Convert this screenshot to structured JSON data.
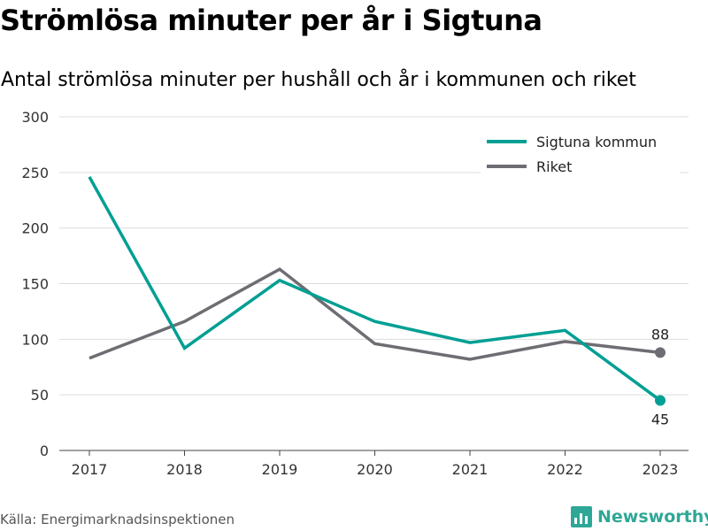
{
  "title": "Strömlösa minuter per år i Sigtuna",
  "subtitle": "Antal strömlösa minuter per hushåll och år i kommunen och riket",
  "source": "Källa: Energimarknadsinspektionen",
  "brand": {
    "name": "Newsworthy",
    "icon": "bar-chart-logo-icon",
    "color": "#2fa796"
  },
  "chart_data": {
    "type": "line",
    "title": "Strömlösa minuter per år i Sigtuna",
    "subtitle": "Antal strömlösa minuter per hushåll och år i kommunen och riket",
    "xlabel": "",
    "ylabel": "",
    "x": [
      "2017",
      "2018",
      "2019",
      "2020",
      "2021",
      "2022",
      "2023"
    ],
    "ylim": [
      0,
      300
    ],
    "yticks": [
      0,
      50,
      100,
      150,
      200,
      250,
      300
    ],
    "grid": true,
    "legend_position": "top-right",
    "series": [
      {
        "name": "Sigtuna kommun",
        "color": "#009f93",
        "values": [
          246,
          92,
          153,
          116,
          97,
          108,
          45
        ],
        "end_label": "45"
      },
      {
        "name": "Riket",
        "color": "#6e6d73",
        "values": [
          83,
          116,
          163,
          96,
          82,
          98,
          88
        ],
        "end_label": "88"
      }
    ]
  }
}
